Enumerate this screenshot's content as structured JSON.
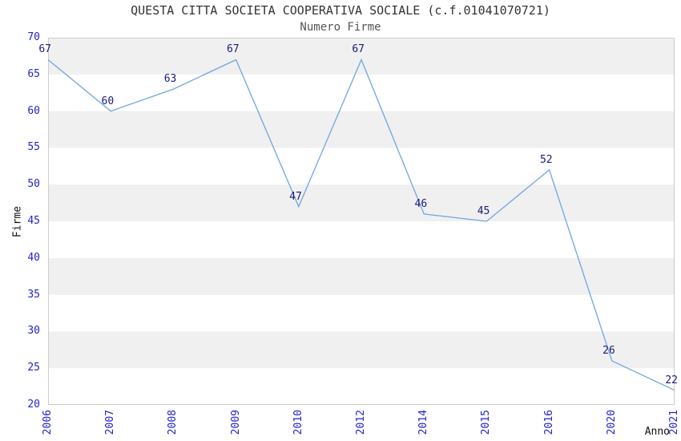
{
  "chart_data": {
    "type": "line",
    "title": "QUESTA CITTA SOCIETA COOPERATIVA SOCIALE (c.f.01041070721)",
    "subtitle": "Numero Firme",
    "xlabel": "Anno",
    "ylabel": "Firme",
    "categories": [
      "2006",
      "2007",
      "2008",
      "2009",
      "2010",
      "2012",
      "2014",
      "2015",
      "2016",
      "2020",
      "2021"
    ],
    "values": [
      67,
      60,
      63,
      67,
      47,
      67,
      46,
      45,
      52,
      26,
      22
    ],
    "ylim": [
      20,
      70
    ],
    "ytick_step": 5,
    "yticks": [
      20,
      25,
      30,
      35,
      40,
      45,
      50,
      55,
      60,
      65,
      70
    ],
    "grid": "alternating-horizontal-bands",
    "legend_position": "none",
    "point_labels_visible": true,
    "colors": {
      "line": "#6fa6e0",
      "band": "#f0f0f0",
      "plot_background": "#ffffff",
      "border": "#cccccc",
      "tick_label": "#2323cc",
      "data_label": "#1a1a80",
      "title": "#333333",
      "subtitle": "#555555",
      "axis_title": "#111111"
    }
  }
}
